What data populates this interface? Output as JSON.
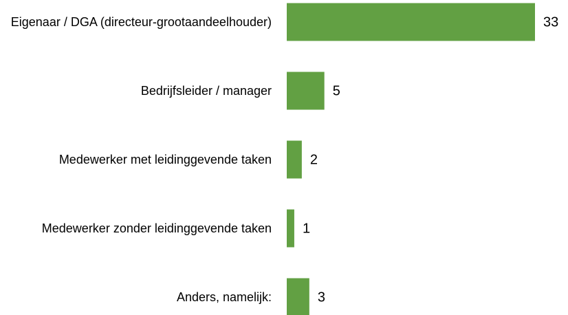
{
  "chart_data": {
    "type": "bar",
    "orientation": "horizontal",
    "categories": [
      "Eigenaar / DGA (directeur-grootaandeelhouder)",
      "Bedrijfsleider / manager",
      "Medewerker met leidinggevende taken",
      "Medewerker zonder leidinggevende taken",
      "Anders, namelijk:"
    ],
    "values": [
      33,
      5,
      2,
      1,
      3
    ],
    "color": "#62a043"
  }
}
